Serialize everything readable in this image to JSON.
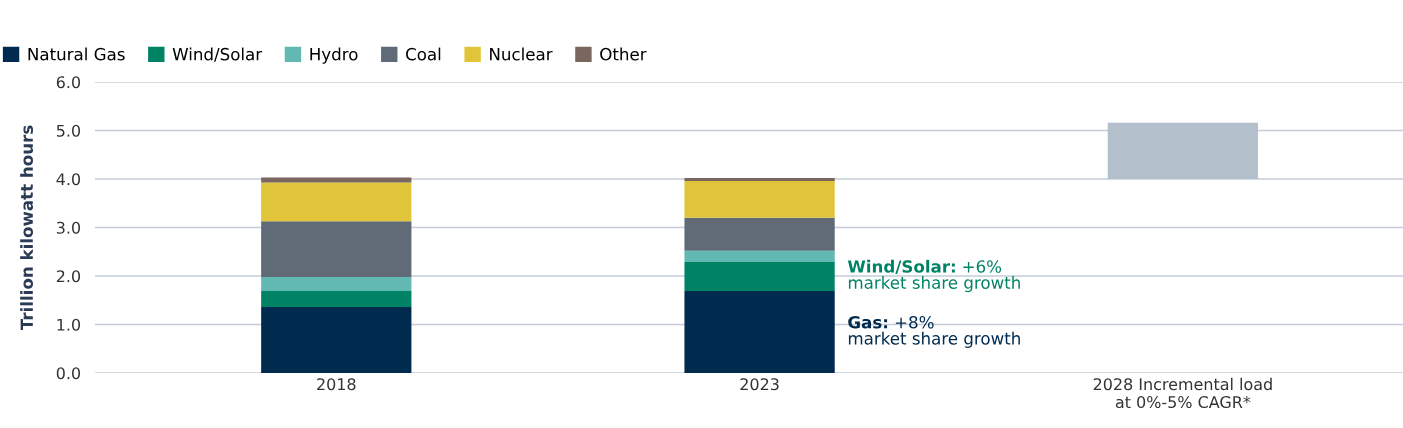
{
  "chart_data": {
    "type": "bar",
    "stacked": true,
    "ylabel": "Trillion kilowatt hours",
    "categories": [
      "2018",
      "2023",
      "2028 Incremental load\nat 0%-5% CAGR*"
    ],
    "series": [
      {
        "name": "Natural Gas",
        "color": "#002b4e",
        "values": [
          1.36,
          1.69,
          null
        ]
      },
      {
        "name": "Wind/Solar",
        "color": "#008264",
        "values": [
          0.33,
          0.6,
          null
        ]
      },
      {
        "name": "Hydro",
        "color": "#62b9b4",
        "values": [
          0.29,
          0.23,
          null
        ]
      },
      {
        "name": "Coal",
        "color": "#606b77",
        "values": [
          1.15,
          0.68,
          null
        ]
      },
      {
        "name": "Nuclear",
        "color": "#e0c53b",
        "values": [
          0.8,
          0.76,
          null
        ]
      },
      {
        "name": "Other",
        "color": "#7a665e",
        "values": [
          0.1,
          0.06,
          null
        ]
      },
      {
        "color": "#b3bfcb",
        "values": [
          null,
          null,
          1.16
        ],
        "base": [
          null,
          null,
          4.0
        ]
      }
    ],
    "ylim": [
      0,
      6.0
    ],
    "yticks": [
      {
        "value": 0,
        "label": "0.0"
      },
      {
        "value": 1,
        "label": "1.0"
      },
      {
        "value": 2,
        "label": "2.0"
      },
      {
        "value": 3,
        "label": "3.0"
      },
      {
        "value": 4,
        "label": "4.0"
      },
      {
        "value": 5,
        "label": "5.0"
      },
      {
        "value": 6,
        "label": "6.0"
      }
    ],
    "grid": "y",
    "legend": "top left",
    "annotations": [
      "Wind/Solar: +6%\nmarket share growth",
      "Gas: +8%\nmarket share growth"
    ]
  }
}
